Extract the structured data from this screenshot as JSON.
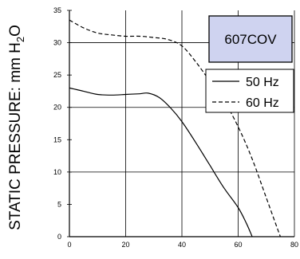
{
  "chart_data": {
    "type": "line",
    "title": "",
    "model": "607COV",
    "ylabel": "STATIC PRESSURE: mm H",
    "ylabel_sub": "2",
    "ylabel_suffix": "O",
    "xlabel": "",
    "xlim": [
      0,
      80
    ],
    "ylim": [
      0,
      35
    ],
    "x_ticks": [
      0,
      20,
      40,
      60,
      80
    ],
    "y_ticks": [
      0,
      5,
      10,
      15,
      20,
      25,
      30,
      35
    ],
    "grid": true,
    "legend_position": "right",
    "colors": {
      "model_box_fill": "#cfd3f0",
      "line": "#000000",
      "grid": "#000000"
    },
    "series": [
      {
        "name": "50 Hz",
        "style": "solid",
        "x": [
          0,
          5,
          10,
          15,
          20,
          25,
          28,
          32,
          36,
          40,
          45,
          50,
          55,
          60,
          63,
          65
        ],
        "y": [
          23,
          22.5,
          22,
          21.9,
          22,
          22.1,
          22.2,
          21.5,
          19.9,
          17.8,
          14.5,
          11,
          7.5,
          4.5,
          2,
          0
        ]
      },
      {
        "name": "60 Hz",
        "style": "dashed",
        "x": [
          0,
          5,
          10,
          15,
          20,
          25,
          30,
          35,
          40,
          45,
          50,
          55,
          60,
          65,
          70,
          75
        ],
        "y": [
          33.5,
          32.3,
          31.5,
          31.2,
          31,
          31,
          30.8,
          30.5,
          29.5,
          27,
          24,
          21,
          17,
          12,
          6,
          0
        ]
      }
    ]
  }
}
